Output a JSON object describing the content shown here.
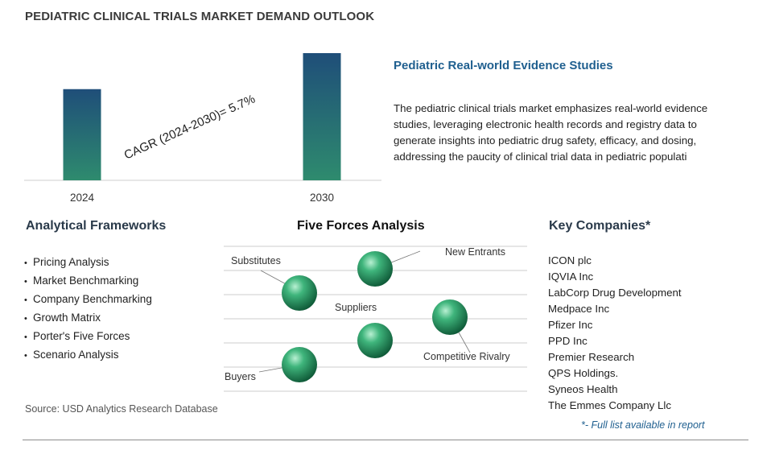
{
  "title": "PEDIATRIC CLINICAL TRIALS MARKET DEMAND OUTLOOK",
  "chart_data": {
    "type": "bar",
    "categories": [
      "2024",
      "2030"
    ],
    "values": [
      1.0,
      1.395
    ],
    "annotation": "CAGR (2024-2030)=  5.7%",
    "colors": {
      "bar_top": "#1f4e79",
      "bar_bottom": "#2e8b6e"
    }
  },
  "insight": {
    "title": "Pediatric Real-world Evidence Studies",
    "lines": [
      "The pediatric clinical trials market emphasizes real-world evidence",
      "studies, leveraging electronic health records and registry data to",
      "generate insights into pediatric drug safety, efficacy, and dosing,",
      "addressing the paucity of clinical trial data in pediatric populati"
    ]
  },
  "frameworks": {
    "title": "Analytical Frameworks",
    "items": [
      "Pricing Analysis",
      "Market Benchmarking",
      "Company Benchmarking",
      "Growth Matrix",
      "Porter's Five Forces",
      "Scenario Analysis"
    ]
  },
  "five_forces": {
    "title": "Five Forces Analysis",
    "labels": {
      "new_entrants": "New Entrants",
      "substitutes": "Substitutes",
      "suppliers": "Suppliers",
      "competitive_rivalry": "Competitive Rivalry",
      "buyers": "Buyers"
    },
    "sphere_color": "#2e9e6a"
  },
  "companies": {
    "title": "Key Companies*",
    "items": [
      "ICON plc",
      "IQVIA Inc",
      "LabCorp Drug Development",
      "Medpace Inc",
      "Pfizer Inc",
      "PPD Inc",
      "Premier Research",
      "QPS Holdings.",
      "Syneos Health",
      "The Emmes Company Llc"
    ],
    "note": "*- Full list available in report"
  },
  "source": "Source: USD Analytics Research Database"
}
